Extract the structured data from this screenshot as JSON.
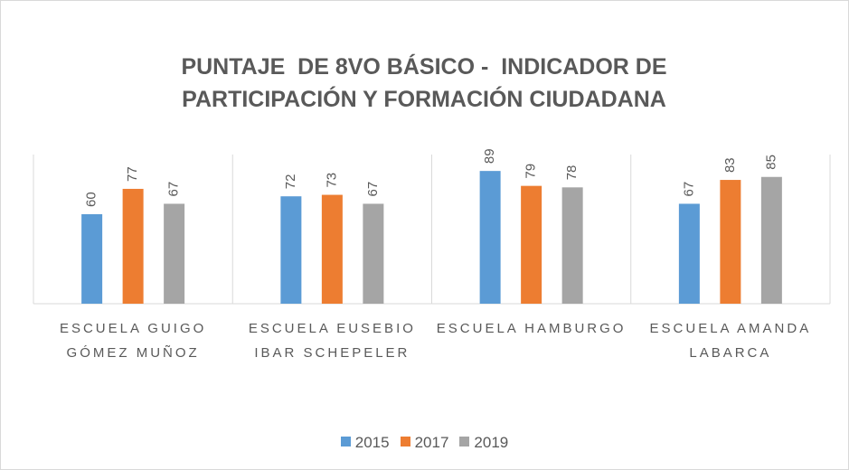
{
  "chart_data": {
    "type": "bar",
    "title": "PUNTAJE  DE 8VO BÁSICO -  INDICADOR DE PARTICIPACIÓN Y FORMACIÓN CIUDADANA",
    "categories": [
      "ESCUELA GUIGO GÓMEZ MUÑOZ",
      "ESCUELA EUSEBIO IBAR SCHEPELER",
      "ESCUELA HAMBURGO",
      "ESCUELA AMANDA LABARCA"
    ],
    "series": [
      {
        "name": "2015",
        "color": "#5b9bd5",
        "values": [
          60,
          72,
          89,
          67
        ]
      },
      {
        "name": "2017",
        "color": "#ed7d31",
        "values": [
          77,
          73,
          79,
          83
        ]
      },
      {
        "name": "2019",
        "color": "#a5a5a5",
        "values": [
          67,
          67,
          78,
          85
        ]
      }
    ],
    "ylim": [
      0,
      100
    ]
  }
}
